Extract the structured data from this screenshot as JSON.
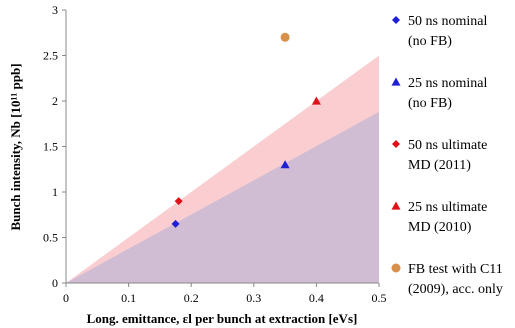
{
  "chart_data": {
    "type": "scatter",
    "xlabel": "Long. emittance, εl per bunch at extraction [eVs]",
    "ylabel": "Bunch intensity, Nb [10¹¹ ppb]",
    "xlim": [
      0,
      0.5
    ],
    "ylim": [
      0,
      3
    ],
    "x_ticks": [
      "0",
      "0.1",
      "0.2",
      "0.3",
      "0.4",
      "0.5"
    ],
    "y_ticks": [
      "0",
      "0.5",
      "1",
      "1.5",
      "2",
      "2.5",
      "3"
    ],
    "grid": "none",
    "legend_position": "right",
    "regions": [
      {
        "color": "#f9c5c8",
        "from": [
          0,
          0
        ],
        "to": [
          0.5,
          2.5
        ]
      },
      {
        "color": "#c8b8d4",
        "from": [
          0,
          0
        ],
        "to": [
          0.5,
          1.88
        ]
      }
    ],
    "series": [
      {
        "name": "50 ns nominal (no FB)",
        "marker": "diamond",
        "color": "#1f1fd6",
        "points": [
          {
            "x": 0.175,
            "y": 0.65
          }
        ]
      },
      {
        "name": "25 ns nominal (no FB)",
        "marker": "triangle",
        "color": "#1f1fd6",
        "points": [
          {
            "x": 0.35,
            "y": 1.3
          }
        ]
      },
      {
        "name": "50 ns ultimate MD (2011)",
        "marker": "diamond",
        "color": "#e0101b",
        "points": [
          {
            "x": 0.18,
            "y": 0.9
          }
        ]
      },
      {
        "name": "25 ns ultimate MD (2010)",
        "marker": "triangle",
        "color": "#e0101b",
        "points": [
          {
            "x": 0.4,
            "y": 2.0
          }
        ]
      },
      {
        "name": "FB test with C11 (2009), acc. only",
        "marker": "circle",
        "color": "#d8904a",
        "points": [
          {
            "x": 0.35,
            "y": 2.7
          }
        ]
      }
    ],
    "legend": [
      {
        "marker": "diamond",
        "color": "#1f1fd6",
        "lines": [
          "50 ns nominal",
          "(no FB)"
        ]
      },
      {
        "marker": "triangle",
        "color": "#1f1fd6",
        "lines": [
          "25 ns nominal",
          "(no FB)"
        ]
      },
      {
        "marker": "diamond",
        "color": "#e0101b",
        "lines": [
          "50 ns ultimate",
          "MD (2011)"
        ]
      },
      {
        "marker": "triangle",
        "color": "#e0101b",
        "lines": [
          "25 ns ultimate",
          "MD (2010)"
        ]
      },
      {
        "marker": "circle",
        "color": "#d8904a",
        "lines": [
          "FB test with C11",
          "(2009), acc. only"
        ]
      }
    ]
  }
}
